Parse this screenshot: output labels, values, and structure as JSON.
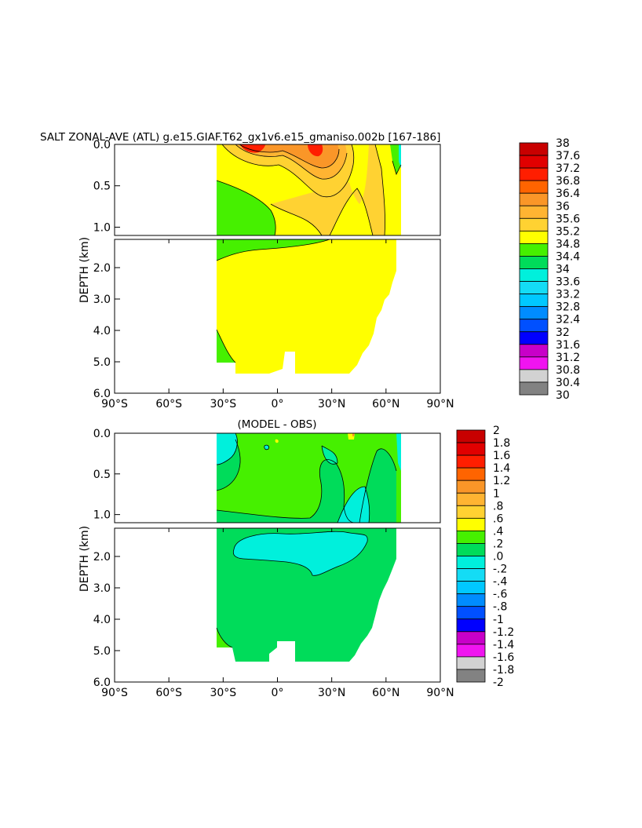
{
  "chart_data": [
    {
      "type": "heatmap",
      "title": "SALT ZONAL-AVE (ATL) g.e15.GIAF.T62_gx1v6.e15_gmaniso.002b [167-186]",
      "ylabel": "DEPTH (km)",
      "xticks": [
        "90°S",
        "60°S",
        "30°S",
        "0°",
        "30°N",
        "60°N",
        "90°N"
      ],
      "xlim": [
        -90,
        90
      ],
      "upper_panel_yticks": [
        "0.0",
        "0.5",
        "1.0"
      ],
      "upper_panel_ylim": [
        0,
        1.1
      ],
      "lower_panel_yticks": [
        "2.0",
        "3.0",
        "4.0",
        "5.0",
        "6.0"
      ],
      "lower_panel_ylim": [
        1.1,
        6.0
      ],
      "colorbar": {
        "levels": [
          "38",
          "37.6",
          "37.2",
          "36.8",
          "36.4",
          "36",
          "35.6",
          "35.2",
          "34.8",
          "34.4",
          "34",
          "33.6",
          "33.2",
          "32.8",
          "32.4",
          "32",
          "31.6",
          "31.2",
          "30.8",
          "30.4",
          "30"
        ],
        "colors": [
          "#c80000",
          "#e10000",
          "#ff1e00",
          "#ff6400",
          "#f58214",
          "#fa9628",
          "#ffb432",
          "#ffd232",
          "#ffff00",
          "#46f000",
          "#00dc5a",
          "#00f0a0",
          "#00f0dc",
          "#14dcf5",
          "#00c8ff",
          "#008cff",
          "#0050ff",
          "#0000ff",
          "#8c14d2",
          "#c800c8",
          "#f014f0",
          "#d2d2d2",
          "#828282"
        ]
      }
    },
    {
      "type": "heatmap",
      "title": "(MODEL - OBS)",
      "ylabel": "DEPTH (km)",
      "xticks": [
        "90°S",
        "60°S",
        "30°S",
        "0°",
        "30°N",
        "60°N",
        "90°N"
      ],
      "xlim": [
        -90,
        90
      ],
      "upper_panel_yticks": [
        "0.0",
        "0.5",
        "1.0"
      ],
      "upper_panel_ylim": [
        0,
        1.1
      ],
      "lower_panel_yticks": [
        "2.0",
        "3.0",
        "4.0",
        "5.0",
        "6.0"
      ],
      "lower_panel_ylim": [
        1.1,
        6.0
      ],
      "colorbar": {
        "levels": [
          "2",
          "1.8",
          "1.6",
          "1.4",
          "1.2",
          "1",
          ".8",
          ".6",
          ".4",
          ".2",
          ".0",
          "-.2",
          "-.4",
          "-.6",
          "-.8",
          "-1",
          "-1.2",
          "-1.4",
          "-1.6",
          "-1.8",
          "-2"
        ],
        "colors": [
          "#c80000",
          "#e10000",
          "#ff1e00",
          "#ff6400",
          "#f58214",
          "#fa9628",
          "#ffb432",
          "#ffd232",
          "#ffff00",
          "#46f000",
          "#00dc5a",
          "#00f0a0",
          "#00f0dc",
          "#14dcf5",
          "#00c8ff",
          "#008cff",
          "#0050ff",
          "#0000ff",
          "#8c14d2",
          "#c800c8",
          "#f014f0",
          "#d2d2d2",
          "#828282"
        ]
      }
    }
  ]
}
